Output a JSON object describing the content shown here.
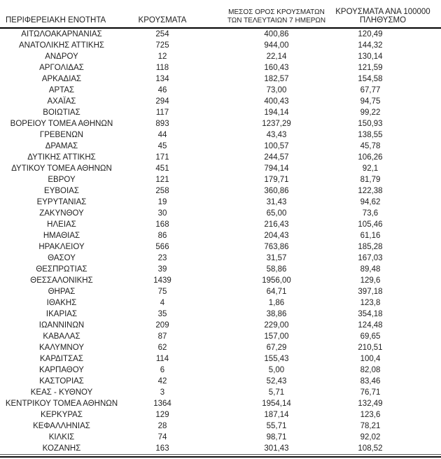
{
  "table": {
    "row_keys": [
      "region",
      "cases",
      "avg_7day",
      "per_100k"
    ],
    "columns": {
      "region": {
        "label": "ΠΕΡΙΦΕΡΕΙΑΚΗ ΕΝΟΤΗΤΑ"
      },
      "cases": {
        "label": "ΚΡΟΥΣΜΑΤΑ"
      },
      "avg_7day": {
        "label_line1": "ΜΕΣΟΣ ΟΡΟΣ ΚΡΟΥΣΜΑΤΩΝ",
        "label_line2": "ΤΩΝ ΤΕΛΕΥΤΑΙΩΝ 7 ΗΜΕΡΩΝ"
      },
      "per_100k": {
        "label_line1": "ΚΡΟΥΣΜΑΤΑ ΑΝΑ 100000",
        "label_line2": "ΠΛΗΘΥΣΜΟ"
      }
    },
    "rows": [
      {
        "region": "ΑΙΤΩΛΟΑΚΑΡΝΑΝΙΑΣ",
        "cases": "254",
        "avg_7day": "400,86",
        "per_100k": "120,49"
      },
      {
        "region": "ΑΝΑΤΟΛΙΚΗΣ ΑΤΤΙΚΗΣ",
        "cases": "725",
        "avg_7day": "944,00",
        "per_100k": "144,32"
      },
      {
        "region": "ΑΝΔΡΟΥ",
        "cases": "12",
        "avg_7day": "22,14",
        "per_100k": "130,14"
      },
      {
        "region": "ΑΡΓΟΛΙΔΑΣ",
        "cases": "118",
        "avg_7day": "160,43",
        "per_100k": "121,59"
      },
      {
        "region": "ΑΡΚΑΔΙΑΣ",
        "cases": "134",
        "avg_7day": "182,57",
        "per_100k": "154,58"
      },
      {
        "region": "ΑΡΤΑΣ",
        "cases": "46",
        "avg_7day": "73,00",
        "per_100k": "67,77"
      },
      {
        "region": "ΑΧΑΪΑΣ",
        "cases": "294",
        "avg_7day": "400,43",
        "per_100k": "94,75"
      },
      {
        "region": "ΒΟΙΩΤΙΑΣ",
        "cases": "117",
        "avg_7day": "194,14",
        "per_100k": "99,22"
      },
      {
        "region": "ΒΟΡΕΙΟΥ ΤΟΜΕΑ ΑΘΗΝΩΝ",
        "cases": "893",
        "avg_7day": "1237,29",
        "per_100k": "150,93"
      },
      {
        "region": "ΓΡΕΒΕΝΩΝ",
        "cases": "44",
        "avg_7day": "43,43",
        "per_100k": "138,55"
      },
      {
        "region": "ΔΡΑΜΑΣ",
        "cases": "45",
        "avg_7day": "100,57",
        "per_100k": "45,78"
      },
      {
        "region": "ΔΥΤΙΚΗΣ ΑΤΤΙΚΗΣ",
        "cases": "171",
        "avg_7day": "244,57",
        "per_100k": "106,26"
      },
      {
        "region": "ΔΥΤΙΚΟΥ ΤΟΜΕΑ ΑΘΗΝΩΝ",
        "cases": "451",
        "avg_7day": "794,14",
        "per_100k": "92,1"
      },
      {
        "region": "ΕΒΡΟΥ",
        "cases": "121",
        "avg_7day": "179,71",
        "per_100k": "81,79"
      },
      {
        "region": "ΕΥΒΟΙΑΣ",
        "cases": "258",
        "avg_7day": "360,86",
        "per_100k": "122,38"
      },
      {
        "region": "ΕΥΡΥΤΑΝΙΑΣ",
        "cases": "19",
        "avg_7day": "31,43",
        "per_100k": "94,62"
      },
      {
        "region": "ΖΑΚΥΝΘΟΥ",
        "cases": "30",
        "avg_7day": "65,00",
        "per_100k": "73,6"
      },
      {
        "region": "ΗΛΕΙΑΣ",
        "cases": "168",
        "avg_7day": "216,43",
        "per_100k": "105,46"
      },
      {
        "region": "ΗΜΑΘΙΑΣ",
        "cases": "86",
        "avg_7day": "204,43",
        "per_100k": "61,16"
      },
      {
        "region": "ΗΡΑΚΛΕΙΟΥ",
        "cases": "566",
        "avg_7day": "763,86",
        "per_100k": "185,28"
      },
      {
        "region": "ΘΑΣΟΥ",
        "cases": "23",
        "avg_7day": "31,57",
        "per_100k": "167,03"
      },
      {
        "region": "ΘΕΣΠΡΩΤΙΑΣ",
        "cases": "39",
        "avg_7day": "58,86",
        "per_100k": "89,48"
      },
      {
        "region": "ΘΕΣΣΑΛΟΝΙΚΗΣ",
        "cases": "1439",
        "avg_7day": "1956,00",
        "per_100k": "129,6"
      },
      {
        "region": "ΘΗΡΑΣ",
        "cases": "75",
        "avg_7day": "64,71",
        "per_100k": "397,18"
      },
      {
        "region": "ΙΘΑΚΗΣ",
        "cases": "4",
        "avg_7day": "1,86",
        "per_100k": "123,8"
      },
      {
        "region": "ΙΚΑΡΙΑΣ",
        "cases": "35",
        "avg_7day": "38,86",
        "per_100k": "354,18"
      },
      {
        "region": "ΙΩΑΝΝΙΝΩΝ",
        "cases": "209",
        "avg_7day": "229,00",
        "per_100k": "124,48"
      },
      {
        "region": "ΚΑΒΑΛΑΣ",
        "cases": "87",
        "avg_7day": "157,00",
        "per_100k": "69,65"
      },
      {
        "region": "ΚΑΛΥΜΝΟΥ",
        "cases": "62",
        "avg_7day": "67,29",
        "per_100k": "210,51"
      },
      {
        "region": "ΚΑΡΔΙΤΣΑΣ",
        "cases": "114",
        "avg_7day": "155,43",
        "per_100k": "100,4"
      },
      {
        "region": "ΚΑΡΠΑΘΟΥ",
        "cases": "6",
        "avg_7day": "5,00",
        "per_100k": "82,08"
      },
      {
        "region": "ΚΑΣΤΟΡΙΑΣ",
        "cases": "42",
        "avg_7day": "52,43",
        "per_100k": "83,46"
      },
      {
        "region": "ΚΕΑΣ - ΚΥΘΝΟΥ",
        "cases": "3",
        "avg_7day": "5,71",
        "per_100k": "76,71"
      },
      {
        "region": "ΚΕΝΤΡΙΚΟΥ ΤΟΜΕΑ ΑΘΗΝΩΝ",
        "cases": "1364",
        "avg_7day": "1954,14",
        "per_100k": "132,49"
      },
      {
        "region": "ΚΕΡΚΥΡΑΣ",
        "cases": "129",
        "avg_7day": "187,14",
        "per_100k": "123,6"
      },
      {
        "region": "ΚΕΦΑΛΛΗΝΙΑΣ",
        "cases": "28",
        "avg_7day": "55,71",
        "per_100k": "78,21"
      },
      {
        "region": "ΚΙΛΚΙΣ",
        "cases": "74",
        "avg_7day": "98,71",
        "per_100k": "92,02"
      },
      {
        "region": "ΚΟΖΑΝΗΣ",
        "cases": "163",
        "avg_7day": "301,43",
        "per_100k": "108,52"
      }
    ]
  },
  "colors": {
    "text": "#1f1f1f",
    "header_rule": "#000000",
    "bottom_thin_rule": "#595959",
    "bottom_thick_rule": "#111111",
    "background": "#ffffff"
  }
}
